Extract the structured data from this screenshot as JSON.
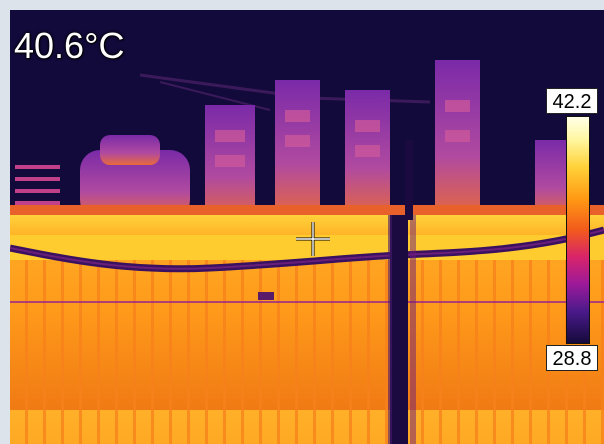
{
  "readout": {
    "spot_temperature": "40.6°C"
  },
  "scale": {
    "max": "42.2",
    "min": "28.8"
  },
  "palette": {
    "hot": "#ffffe8",
    "warm": "#ffd23a",
    "orange": "#ff8a18",
    "magenta": "#d8246a",
    "purple": "#8a1a9a",
    "cold": "#120a3a"
  },
  "icons": {
    "crosshair": "crosshair-icon"
  }
}
